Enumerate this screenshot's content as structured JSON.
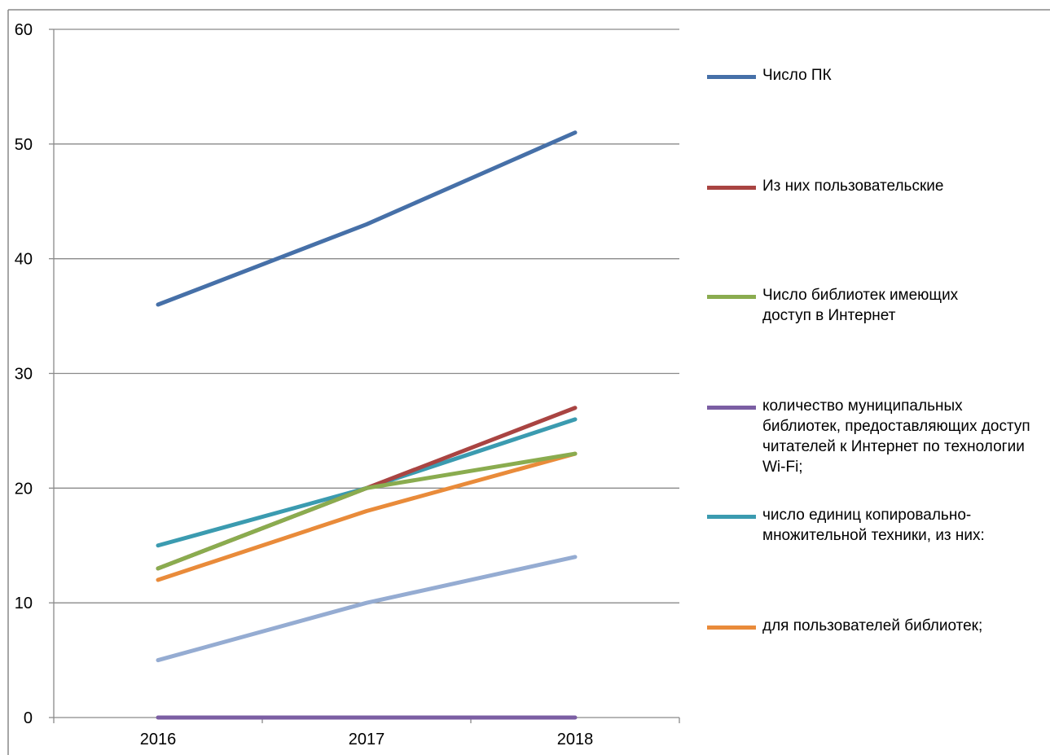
{
  "chart_data": {
    "type": "line",
    "categories": [
      "2016",
      "2017",
      "2018"
    ],
    "ylim": [
      0,
      60
    ],
    "y_ticks": [
      "0",
      "10",
      "20",
      "30",
      "40",
      "50",
      "60"
    ],
    "grid": true,
    "legend_position": "right",
    "series": [
      {
        "name": "Число ПК",
        "color": "#4670a8",
        "values": [
          36,
          43,
          51
        ]
      },
      {
        "name": "Из них пользовательские",
        "color": "#a94442",
        "values": [
          13,
          20,
          27
        ]
      },
      {
        "name": "Число библиотек имеющих доступ в Интернет",
        "color": "#8aac4f",
        "values": [
          13,
          20,
          23
        ]
      },
      {
        "name": "количество муниципальных библиотек, предоставляющих доступ читателей к Интернет по технологии Wi-Fi;",
        "color": "#7b5ea3",
        "values": [
          0,
          0,
          0
        ]
      },
      {
        "name": "число единиц копировально-множительной техники, из них:",
        "color": "#3b9bb0",
        "values": [
          15,
          20,
          26
        ]
      },
      {
        "name": " для пользователей библиотек;",
        "color": "#e98b3a",
        "values": [
          12,
          18,
          23
        ]
      },
      {
        "color": "#95acd2",
        "values": [
          5,
          10,
          14
        ]
      }
    ]
  }
}
